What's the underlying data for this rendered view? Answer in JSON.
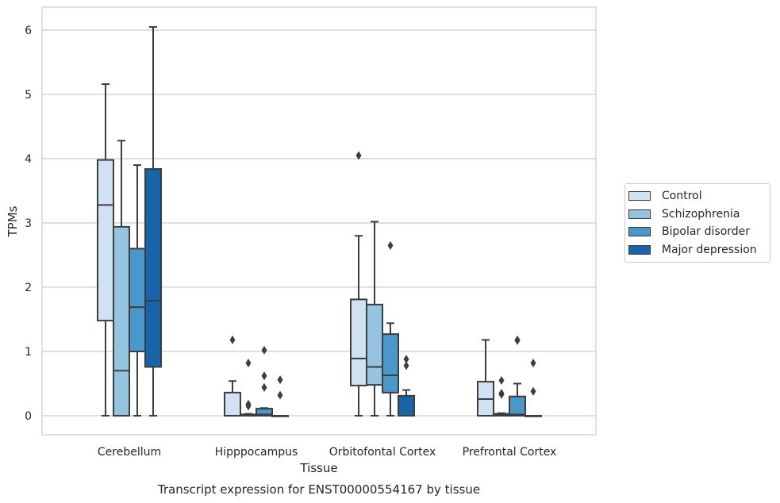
{
  "chart_data": {
    "type": "box",
    "caption": "Transcript expression for ENST00000554167 by tissue",
    "xlabel": "Tissue",
    "ylabel": "TPMs",
    "ylim": [
      -0.3,
      6.35
    ],
    "yticks": [
      0,
      1,
      2,
      3,
      4,
      5,
      6
    ],
    "grid": true,
    "legend_placement": "right-outside",
    "categories": [
      "Cerebellum",
      "Hipppocampus",
      "Orbitofontal Cortex",
      "Prefrontal Cortex"
    ],
    "series": [
      {
        "name": "Control",
        "color": "#d0e1f2",
        "boxes": [
          {
            "min": 0,
            "q1": 1.48,
            "median": 3.28,
            "q3": 3.98,
            "max": 5.16,
            "outliers": []
          },
          {
            "min": 0,
            "q1": 0,
            "median": 0,
            "q3": 0.36,
            "max": 0.54,
            "outliers": [
              1.18
            ]
          },
          {
            "min": 0,
            "q1": 0.47,
            "median": 0.89,
            "q3": 1.81,
            "max": 2.8,
            "outliers": [
              4.05
            ]
          },
          {
            "min": 0,
            "q1": 0,
            "median": 0.26,
            "q3": 0.53,
            "max": 1.18,
            "outliers": []
          }
        ]
      },
      {
        "name": "Schizophrenia",
        "color": "#94c4df",
        "boxes": [
          {
            "min": 0,
            "q1": 0,
            "median": 0.7,
            "q3": 2.94,
            "max": 4.28,
            "outliers": []
          },
          {
            "min": 0,
            "q1": 0,
            "median": 0.01,
            "q3": 0.02,
            "max": 0.03,
            "outliers": [
              0.82,
              0.18,
              0.15
            ]
          },
          {
            "min": 0,
            "q1": 0.48,
            "median": 0.76,
            "q3": 1.73,
            "max": 3.02,
            "outliers": []
          },
          {
            "min": 0,
            "q1": 0,
            "median": 0.01,
            "q3": 0.03,
            "max": 0.04,
            "outliers": [
              0.55,
              0.35,
              0.33
            ]
          }
        ]
      },
      {
        "name": "Bipolar disorder",
        "color": "#4a98c9",
        "boxes": [
          {
            "min": 0,
            "q1": 1.0,
            "median": 1.69,
            "q3": 2.6,
            "max": 3.9,
            "outliers": []
          },
          {
            "min": 0,
            "q1": 0,
            "median": 0.02,
            "q3": 0.11,
            "max": 0.12,
            "outliers": [
              1.02,
              0.62,
              0.44
            ]
          },
          {
            "min": 0,
            "q1": 0.36,
            "median": 0.63,
            "q3": 1.27,
            "max": 1.44,
            "outliers": [
              2.65
            ]
          },
          {
            "min": 0,
            "q1": 0,
            "median": 0.02,
            "q3": 0.3,
            "max": 0.5,
            "outliers": [
              1.18,
              1.17
            ]
          }
        ]
      },
      {
        "name": "Major depression",
        "color": "#1764ab",
        "boxes": [
          {
            "min": 0,
            "q1": 0.76,
            "median": 1.79,
            "q3": 3.84,
            "max": 6.05,
            "outliers": []
          },
          {
            "min": 0,
            "q1": 0,
            "median": 0,
            "q3": 0,
            "max": 0,
            "outliers": [
              0.56,
              0.32
            ]
          },
          {
            "min": 0,
            "q1": 0,
            "median": 0,
            "q3": 0.31,
            "max": 0.4,
            "outliers": [
              0.88,
              0.78
            ]
          },
          {
            "min": 0,
            "q1": 0,
            "median": 0,
            "q3": 0,
            "max": 0,
            "outliers": [
              0.82,
              0.38
            ]
          }
        ]
      }
    ]
  }
}
